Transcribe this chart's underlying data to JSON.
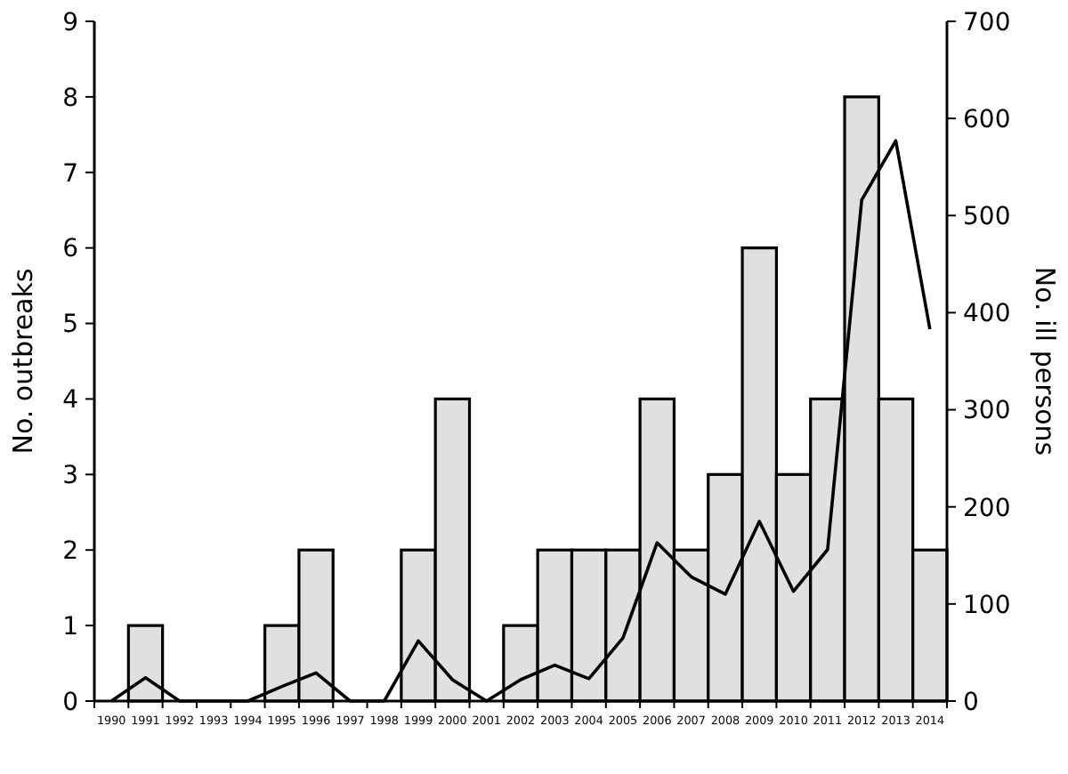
{
  "chart_data": {
    "type": "bar",
    "categories": [
      "1990",
      "1991",
      "1992",
      "1993",
      "1994",
      "1995",
      "1996",
      "1997",
      "1998",
      "1999",
      "2000",
      "2001",
      "2002",
      "2003",
      "2004",
      "2005",
      "2006",
      "2007",
      "2008",
      "2009",
      "2010",
      "2011",
      "2012",
      "2013",
      "2014"
    ],
    "series": [
      {
        "color": "#e0e0e0",
        "values": [
          0,
          1,
          0,
          0,
          0,
          1,
          2,
          0,
          0,
          2,
          4,
          0,
          1,
          2,
          2,
          2,
          4,
          2,
          3,
          6,
          3,
          4,
          8,
          4,
          2
        ]
      },
      {
        "type": "line",
        "axis": "y2",
        "color": "#000000",
        "values": [
          0,
          24,
          0,
          0,
          0,
          15,
          29,
          0,
          0,
          62,
          22,
          0,
          22,
          37,
          23,
          65,
          163,
          128,
          110,
          185,
          113,
          156,
          516,
          577,
          383
        ]
      }
    ],
    "ylabel": "No. outbreaks",
    "y2label": "No. ill persons",
    "ylim": [
      0,
      9
    ],
    "yticks": [
      0,
      1,
      2,
      3,
      4,
      5,
      6,
      7,
      8,
      9
    ],
    "y2lim": [
      0,
      700
    ],
    "y2ticks": [
      0,
      100,
      200,
      300,
      400,
      500,
      600,
      700
    ],
    "grid": false,
    "marker": "none",
    "line_style": "solid"
  }
}
